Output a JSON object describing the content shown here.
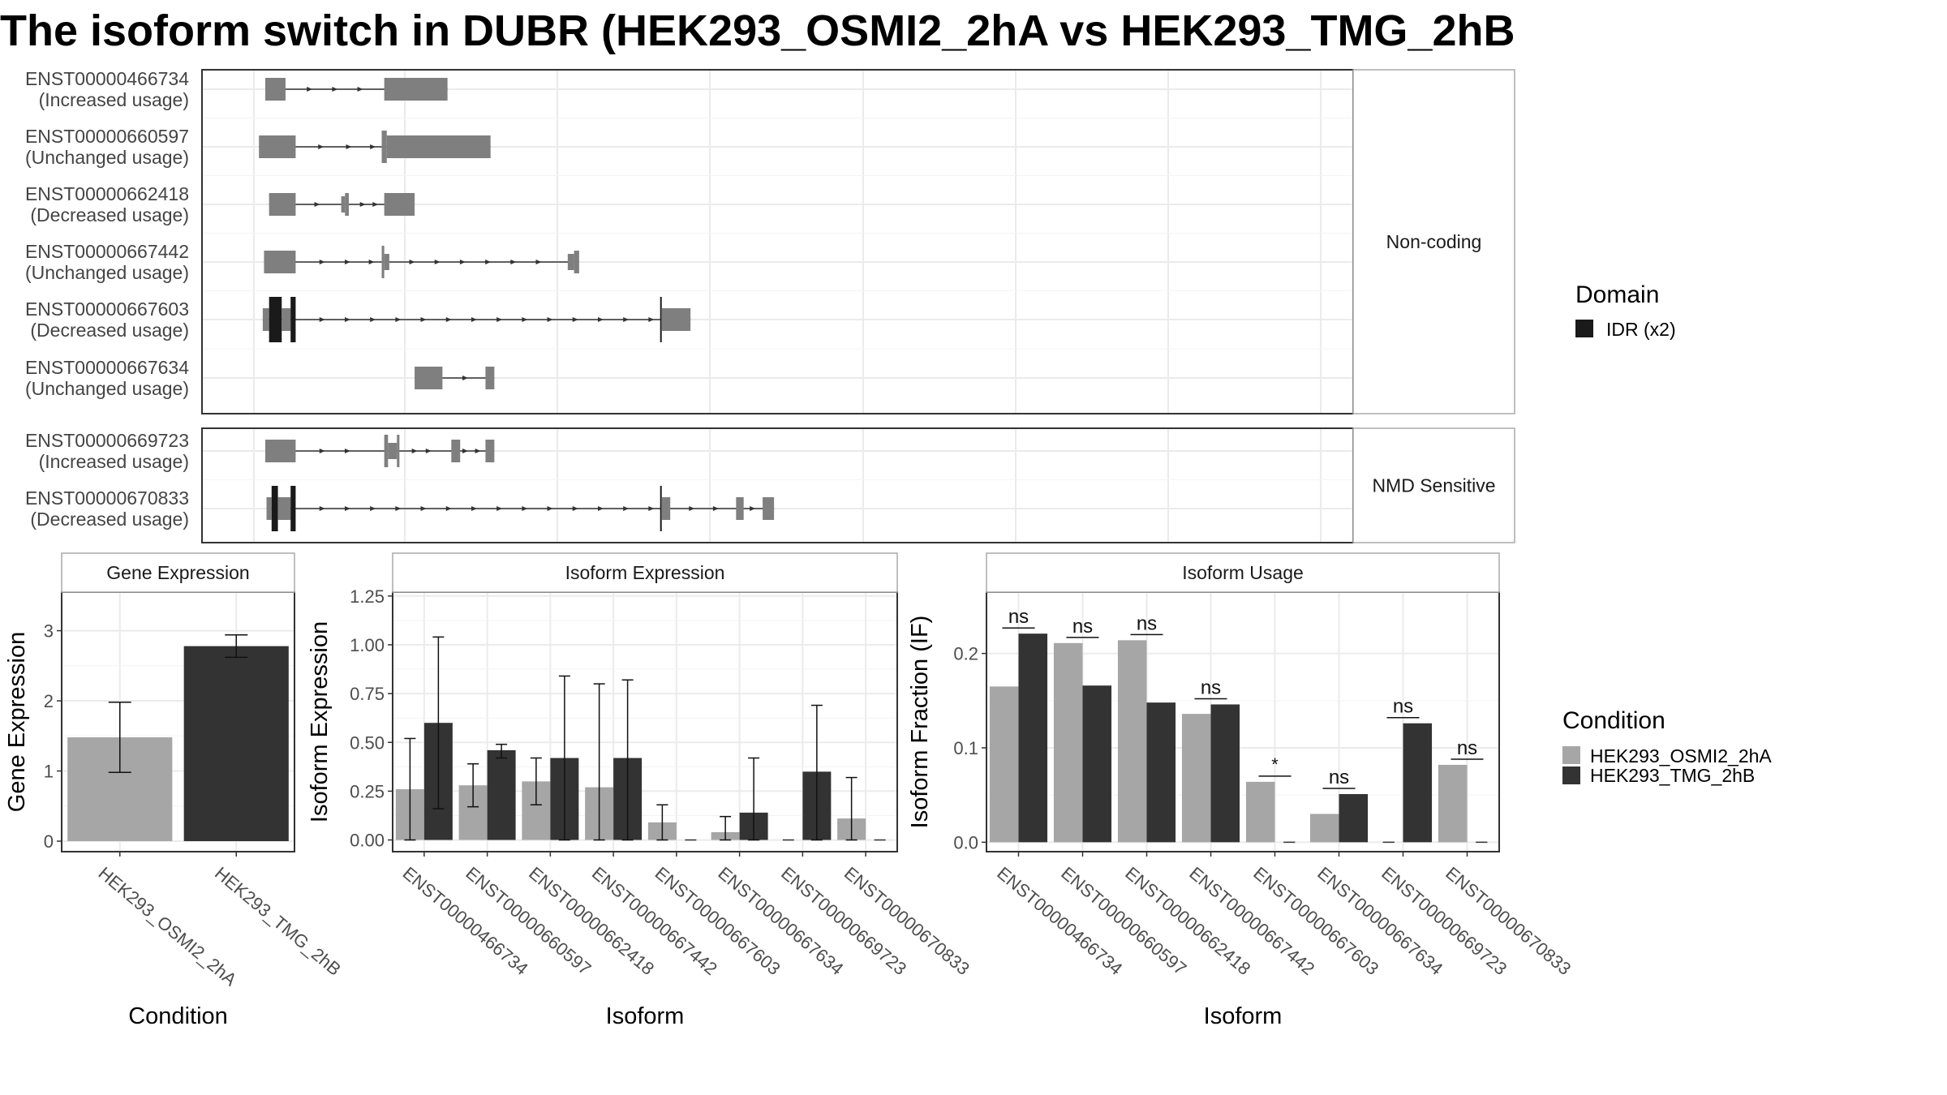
{
  "title": "The isoform switch in DUBR (HEK293_OSMI2_2hA vs HEK293_TMG_2hB",
  "colors": {
    "exon": "#7f7f7f",
    "domain": "#1a1a1a",
    "cond_a": "#a6a6a6",
    "cond_b": "#333333",
    "panel_border": "#333333",
    "strip_fill": "#ffffff",
    "grid": "#ebebeb"
  },
  "structure": {
    "groups": [
      {
        "label": "Non-coding",
        "isoforms": [
          {
            "id": "ENST00000466734",
            "usage": "(Increased usage)",
            "exons": [
              [
                0.0,
                1.6,
                "w"
              ],
              [
                9.4,
                14.4,
                "w"
              ]
            ],
            "arrows": [
              3.6,
              5.6,
              7.6
            ]
          },
          {
            "id": "ENST00000660597",
            "usage": "(Unchanged usage)",
            "exons": [
              [
                -0.5,
                2.4,
                "w"
              ],
              [
                9.2,
                9.6,
                "n"
              ],
              [
                9.6,
                17.8,
                "w"
              ],
              [
                9.7,
                10.1,
                "t"
              ]
            ],
            "arrows": [
              4.5,
              6.7,
              8.6
            ]
          },
          {
            "id": "ENST00000662418",
            "usage": "(Decreased usage)",
            "exons": [
              [
                0.3,
                2.4,
                "w"
              ],
              [
                6.0,
                6.3,
                "t"
              ],
              [
                6.3,
                6.6,
                "w"
              ],
              [
                9.4,
                11.8,
                "w"
              ]
            ],
            "arrows": [
              4.2,
              7.8,
              8.8
            ]
          },
          {
            "id": "ENST00000667442",
            "usage": "(Unchanged usage)",
            "exons": [
              [
                -0.1,
                2.4,
                "w"
              ],
              [
                9.4,
                9.8,
                "t"
              ],
              [
                9.2,
                9.4,
                "n"
              ],
              [
                23.9,
                24.4,
                "t"
              ],
              [
                24.4,
                24.8,
                "w"
              ]
            ],
            "arrows": [
              4.6,
              6.6,
              8.5,
              11.7,
              13.7,
              15.7,
              17.7,
              19.7,
              21.7
            ]
          },
          {
            "id": "ENST00000667603",
            "usage": "(Decreased usage)",
            "exons": [
              [
                -0.2,
                0.3,
                "w"
              ],
              [
                0.3,
                1.3,
                "d"
              ],
              [
                1.3,
                2.0,
                "w"
              ],
              [
                2.0,
                2.4,
                "d"
              ],
              [
                31.2,
                31.3,
                "d"
              ],
              [
                31.3,
                33.6,
                "w"
              ]
            ],
            "arrows": [
              4.6,
              6.6,
              8.6,
              10.6,
              12.6,
              14.6,
              16.6,
              18.6,
              20.6,
              22.6,
              24.6,
              26.6,
              28.6,
              30.6
            ]
          },
          {
            "id": "ENST00000667634",
            "usage": "(Unchanged usage)",
            "exons": [
              [
                11.8,
                14.0,
                "w"
              ],
              [
                17.4,
                18.1,
                "w"
              ]
            ],
            "arrows": [
              15.9
            ]
          }
        ]
      },
      {
        "label": "NMD Sensitive",
        "isoforms": [
          {
            "id": "ENST00000669723",
            "usage": "(Increased usage)",
            "exons": [
              [
                0.0,
                2.4,
                "w"
              ],
              [
                9.4,
                9.7,
                "n"
              ],
              [
                9.7,
                10.4,
                "t"
              ],
              [
                10.4,
                10.6,
                "n"
              ],
              [
                14.7,
                15.4,
                "w"
              ],
              [
                17.4,
                18.1,
                "w"
              ]
            ],
            "arrows": [
              4.6,
              6.6,
              11.9,
              13.0,
              15.9,
              16.9
            ]
          },
          {
            "id": "ENST00000670833",
            "usage": "(Decreased usage)",
            "exons": [
              [
                0.1,
                0.5,
                "w"
              ],
              [
                0.5,
                1.0,
                "d"
              ],
              [
                1.0,
                2.0,
                "w"
              ],
              [
                2.0,
                2.4,
                "d"
              ],
              [
                31.2,
                31.3,
                "d"
              ],
              [
                31.3,
                32.0,
                "w"
              ],
              [
                37.2,
                37.8,
                "w"
              ],
              [
                39.3,
                40.2,
                "w"
              ]
            ],
            "arrows": [
              4.6,
              6.6,
              8.6,
              10.6,
              12.6,
              14.6,
              16.6,
              18.6,
              20.6,
              22.6,
              24.6,
              26.6,
              28.6,
              30.6,
              33.8,
              35.7,
              38.6
            ]
          }
        ]
      }
    ]
  },
  "legend_domain": {
    "title": "Domain",
    "entries": [
      {
        "label": "IDR (x2)",
        "color": "#1a1a1a"
      }
    ]
  },
  "legend_condition": {
    "title": "Condition",
    "entries": [
      {
        "label": "HEK293_OSMI2_2hA",
        "color": "#a6a6a6"
      },
      {
        "label": "HEK293_TMG_2hB",
        "color": "#333333"
      }
    ]
  },
  "chart_data": [
    {
      "type": "bar",
      "title": "Gene Expression",
      "xlabel": "Condition",
      "ylabel": "Gene Expression",
      "ylim": [
        -0.15,
        3.55
      ],
      "yticks": [
        0,
        1,
        2,
        3
      ],
      "categories": [
        "HEK293_OSMI2_2hA",
        "HEK293_TMG_2hB"
      ],
      "values": [
        1.48,
        2.78
      ],
      "errors": [
        [
          0.98,
          1.98
        ],
        [
          2.62,
          2.94
        ]
      ]
    },
    {
      "type": "bar",
      "title": "Isoform Expression",
      "xlabel": "Isoform",
      "ylabel": "Isoform Expression",
      "ylim": [
        -0.06,
        1.27
      ],
      "yticks": [
        "0.00",
        "0.25",
        "0.50",
        "0.75",
        "1.00",
        "1.25"
      ],
      "categories": [
        "ENST00000466734",
        "ENST00000660597",
        "ENST00000662418",
        "ENST00000667442",
        "ENST00000667603",
        "ENST00000667634",
        "ENST00000669723",
        "ENST00000670833"
      ],
      "series": [
        {
          "name": "HEK293_OSMI2_2hA",
          "values": [
            0.26,
            0.28,
            0.3,
            0.27,
            0.09,
            0.04,
            0.0,
            0.11
          ],
          "errors": [
            [
              0.0,
              0.52
            ],
            [
              0.17,
              0.39
            ],
            [
              0.18,
              0.42
            ],
            [
              0.0,
              0.8
            ],
            [
              0.0,
              0.18
            ],
            [
              0.0,
              0.12
            ],
            [
              0.0,
              0.0
            ],
            [
              0.0,
              0.32
            ]
          ]
        },
        {
          "name": "HEK293_TMG_2hB",
          "values": [
            0.6,
            0.46,
            0.42,
            0.42,
            0.0,
            0.14,
            0.35,
            0.0
          ],
          "errors": [
            [
              0.16,
              1.04
            ],
            [
              0.42,
              0.49
            ],
            [
              0.0,
              0.84
            ],
            [
              0.0,
              0.82
            ],
            [
              0.0,
              0.0
            ],
            [
              0.0,
              0.42
            ],
            [
              0.0,
              0.69
            ],
            [
              0.0,
              0.0
            ]
          ]
        }
      ]
    },
    {
      "type": "bar",
      "title": "Isoform Usage",
      "xlabel": "Isoform",
      "ylabel": "Isoform Fraction (IF)",
      "ylim": [
        -0.01,
        0.265
      ],
      "yticks": [
        "0.0",
        "0.1",
        "0.2"
      ],
      "categories": [
        "ENST00000466734",
        "ENST00000660597",
        "ENST00000662418",
        "ENST00000667442",
        "ENST00000667603",
        "ENST00000667634",
        "ENST00000669723",
        "ENST00000670833"
      ],
      "series": [
        {
          "name": "HEK293_OSMI2_2hA",
          "values": [
            0.165,
            0.211,
            0.214,
            0.136,
            0.064,
            0.03,
            0.0,
            0.082
          ]
        },
        {
          "name": "HEK293_TMG_2hB",
          "values": [
            0.221,
            0.166,
            0.148,
            0.146,
            0.0,
            0.051,
            0.126,
            0.0
          ]
        }
      ],
      "significance": [
        "ns",
        "ns",
        "ns",
        "ns",
        "*",
        "ns",
        "ns",
        "ns"
      ]
    }
  ]
}
